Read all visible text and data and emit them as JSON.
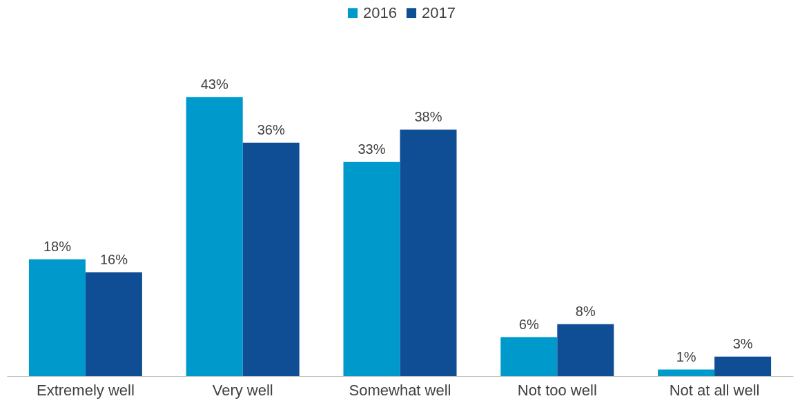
{
  "chart_data": {
    "type": "bar",
    "categories": [
      "Extremely well",
      "Very well",
      "Somewhat well",
      "Not too well",
      "Not at all well"
    ],
    "series": [
      {
        "name": "2016",
        "color": "#0099cc",
        "values": [
          18,
          43,
          33,
          6,
          1
        ],
        "value_labels": [
          "18%",
          "43%",
          "33%",
          "6%",
          "1%"
        ]
      },
      {
        "name": "2017",
        "color": "#0f4e94",
        "values": [
          16,
          36,
          38,
          8,
          3
        ],
        "value_labels": [
          "16%",
          "36%",
          "38%",
          "8%",
          "3%"
        ]
      }
    ],
    "legend": "top"
  }
}
